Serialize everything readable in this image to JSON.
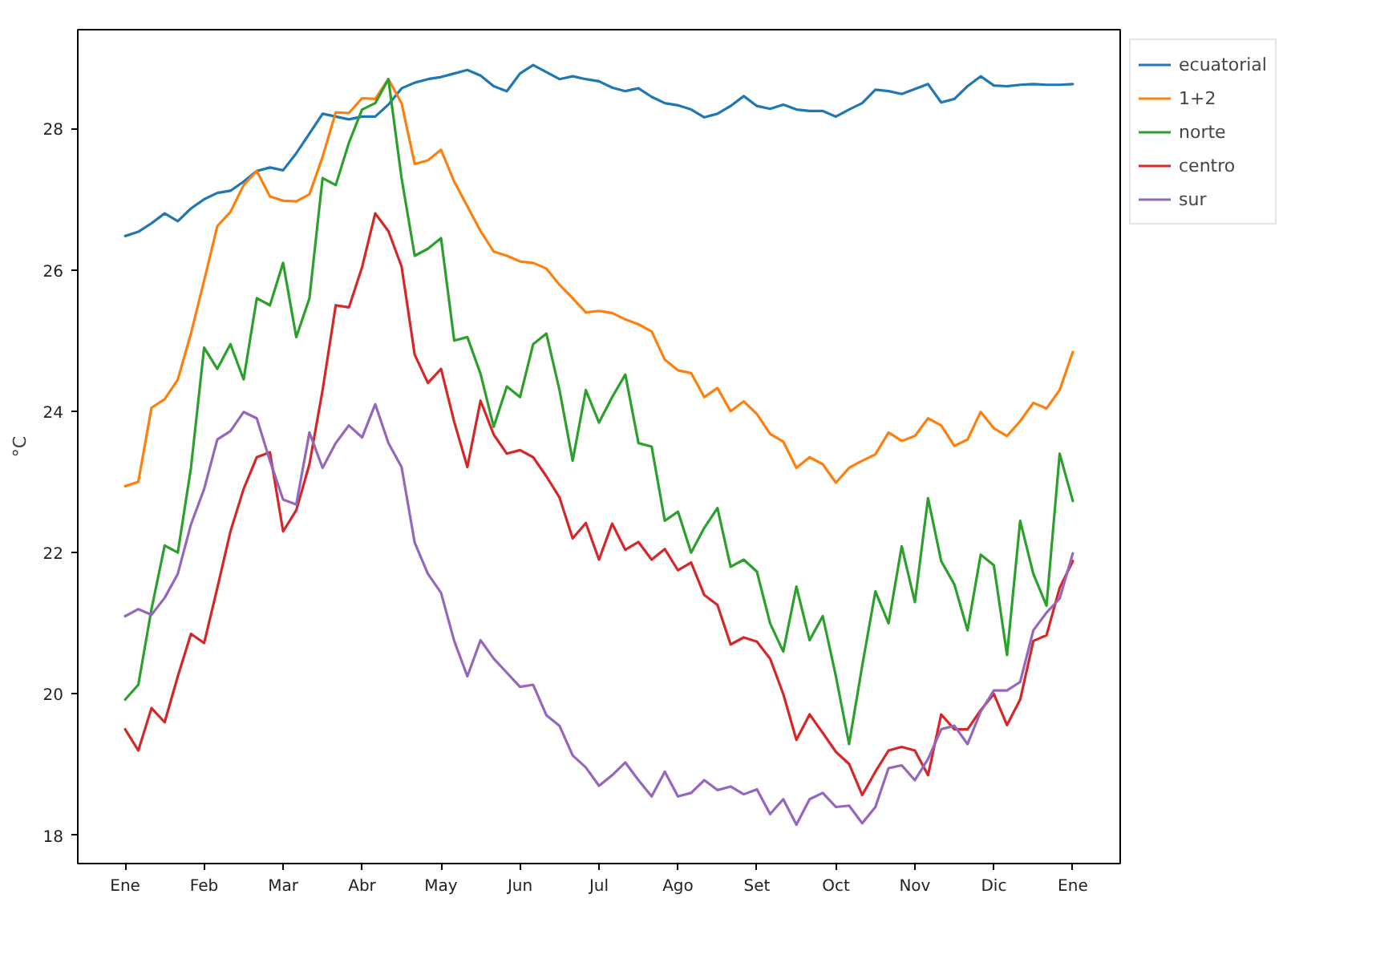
{
  "chart_data": {
    "type": "line",
    "ylabel": "°C",
    "categories": [
      "Ene",
      null,
      null,
      null,
      null,
      null,
      "Feb",
      null,
      null,
      null,
      null,
      null,
      "Mar",
      null,
      null,
      null,
      null,
      null,
      "Abr",
      null,
      null,
      null,
      null,
      null,
      "May",
      null,
      null,
      null,
      null,
      null,
      "Jun",
      null,
      null,
      null,
      null,
      null,
      "Jul",
      null,
      null,
      null,
      null,
      null,
      "Ago",
      null,
      null,
      null,
      null,
      null,
      "Set",
      null,
      null,
      null,
      null,
      null,
      "Oct",
      null,
      null,
      null,
      null,
      null,
      "Nov",
      null,
      null,
      null,
      null,
      null,
      "Dic",
      null,
      null,
      null,
      null,
      null,
      "Ene"
    ],
    "ylim": [
      17.6,
      29.4
    ],
    "yticks": [
      18,
      20,
      22,
      24,
      26,
      28
    ],
    "grid": false,
    "legend": "top right",
    "series": [
      {
        "name": "ecuatorial",
        "color": "#1f77b4",
        "values": [
          26.48,
          26.54,
          26.66,
          26.8,
          26.69,
          26.87,
          27.0,
          27.09,
          27.12,
          27.25,
          27.4,
          27.45,
          27.41,
          27.65,
          27.93,
          28.21,
          28.17,
          28.13,
          28.17,
          28.17,
          28.34,
          28.57,
          28.65,
          28.7,
          28.73,
          28.78,
          28.83,
          28.75,
          28.6,
          28.53,
          28.78,
          28.9,
          28.8,
          28.7,
          28.74,
          28.7,
          28.67,
          28.58,
          28.53,
          28.57,
          28.45,
          28.36,
          28.33,
          28.27,
          28.16,
          28.21,
          28.32,
          28.46,
          28.32,
          28.28,
          28.34,
          28.27,
          28.25,
          28.25,
          28.17,
          28.27,
          28.36,
          28.55,
          28.53,
          28.49,
          28.56,
          28.63,
          28.37,
          28.42,
          28.6,
          28.74,
          28.61,
          28.6,
          28.62,
          28.63,
          28.62,
          28.62,
          28.63
        ]
      },
      {
        "name": "1+2",
        "color": "#ff7f0e",
        "values": [
          22.94,
          23.0,
          24.05,
          24.17,
          24.45,
          25.1,
          25.85,
          26.62,
          26.82,
          27.2,
          27.4,
          27.04,
          26.98,
          26.97,
          27.07,
          27.6,
          28.23,
          28.22,
          28.43,
          28.42,
          28.7,
          28.36,
          27.5,
          27.55,
          27.7,
          27.25,
          26.9,
          26.55,
          26.26,
          26.2,
          26.12,
          26.1,
          26.02,
          25.79,
          25.6,
          25.4,
          25.42,
          25.39,
          25.3,
          25.23,
          25.13,
          24.73,
          24.58,
          24.54,
          24.2,
          24.33,
          24.0,
          24.14,
          23.96,
          23.68,
          23.57,
          23.2,
          23.35,
          23.25,
          22.99,
          23.2,
          23.3,
          23.39,
          23.7,
          23.58,
          23.65,
          23.9,
          23.8,
          23.51,
          23.6,
          23.99,
          23.76,
          23.65,
          23.86,
          24.12,
          24.04,
          24.3,
          24.84
        ]
      },
      {
        "name": "norte",
        "color": "#2ca02c",
        "values": [
          19.92,
          20.13,
          21.2,
          22.1,
          22.0,
          23.2,
          24.9,
          24.6,
          24.95,
          24.45,
          25.6,
          25.5,
          26.1,
          25.05,
          25.6,
          27.3,
          27.2,
          27.8,
          28.27,
          28.36,
          28.7,
          27.3,
          26.2,
          26.3,
          26.45,
          25.0,
          25.05,
          24.53,
          23.78,
          24.35,
          24.2,
          24.95,
          25.1,
          24.3,
          23.3,
          24.3,
          23.84,
          24.2,
          24.52,
          23.55,
          23.5,
          22.45,
          22.58,
          22.0,
          22.35,
          22.63,
          21.8,
          21.9,
          21.73,
          21.0,
          20.6,
          21.52,
          20.76,
          21.1,
          20.25,
          19.29,
          20.4,
          21.45,
          21.0,
          22.09,
          21.3,
          22.77,
          21.88,
          21.55,
          20.9,
          21.97,
          21.82,
          20.55,
          22.45,
          21.7,
          21.25,
          23.4,
          22.73
        ]
      },
      {
        "name": "centro",
        "color": "#d62728",
        "values": [
          19.5,
          19.2,
          19.8,
          19.6,
          20.25,
          20.85,
          20.72,
          21.5,
          22.3,
          22.9,
          23.35,
          23.42,
          22.3,
          22.6,
          23.25,
          24.3,
          25.5,
          25.47,
          26.04,
          26.8,
          26.55,
          26.05,
          24.8,
          24.4,
          24.6,
          23.85,
          23.21,
          24.15,
          23.67,
          23.4,
          23.45,
          23.35,
          23.08,
          22.78,
          22.2,
          22.42,
          21.9,
          22.41,
          22.04,
          22.15,
          21.9,
          22.05,
          21.75,
          21.86,
          21.4,
          21.26,
          20.7,
          20.8,
          20.74,
          20.5,
          20.0,
          19.35,
          19.71,
          19.45,
          19.18,
          19.01,
          18.57,
          18.9,
          19.2,
          19.25,
          19.2,
          18.85,
          19.71,
          19.5,
          19.5,
          19.77,
          20.0,
          19.56,
          19.92,
          20.75,
          20.83,
          21.5,
          21.88
        ]
      },
      {
        "name": "sur",
        "color": "#9467bd",
        "values": [
          21.1,
          21.2,
          21.12,
          21.36,
          21.7,
          22.4,
          22.9,
          23.6,
          23.72,
          23.99,
          23.9,
          23.3,
          22.75,
          22.68,
          23.7,
          23.2,
          23.55,
          23.8,
          23.63,
          24.1,
          23.55,
          23.21,
          22.14,
          21.7,
          21.43,
          20.75,
          20.25,
          20.76,
          20.5,
          20.3,
          20.1,
          20.13,
          19.7,
          19.55,
          19.13,
          18.96,
          18.7,
          18.85,
          19.03,
          18.78,
          18.55,
          18.9,
          18.55,
          18.6,
          18.78,
          18.64,
          18.69,
          18.58,
          18.65,
          18.3,
          18.51,
          18.15,
          18.51,
          18.6,
          18.4,
          18.42,
          18.17,
          18.4,
          18.95,
          18.99,
          18.78,
          19.08,
          19.5,
          19.55,
          19.29,
          19.75,
          20.05,
          20.05,
          20.17,
          20.9,
          21.15,
          21.35,
          21.99
        ]
      }
    ]
  }
}
